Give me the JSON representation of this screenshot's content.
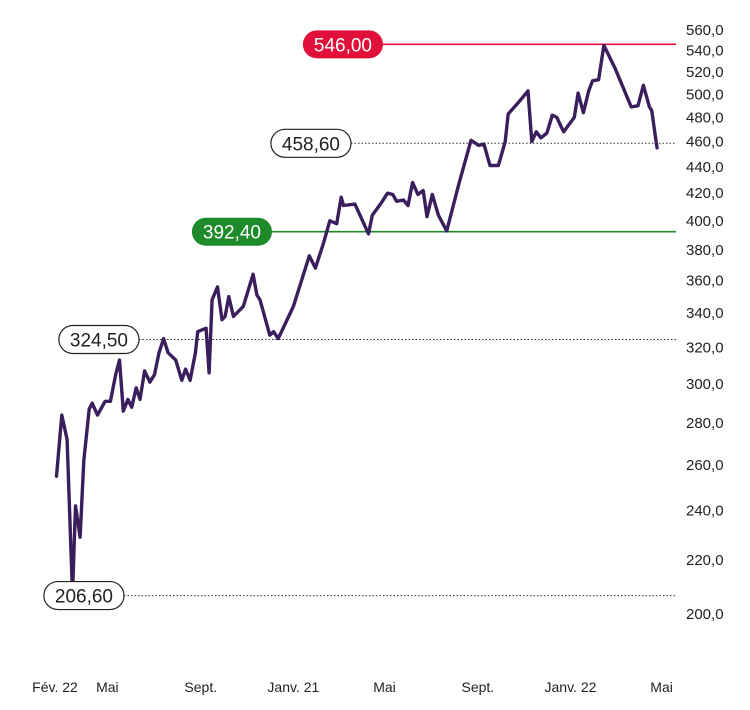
{
  "chart_data": {
    "type": "line",
    "scale": "log",
    "y_ticks": [
      "200,0",
      "220,0",
      "240,0",
      "260,0",
      "280,0",
      "300,0",
      "320,0",
      "340,0",
      "360,0",
      "380,0",
      "400,0",
      "420,0",
      "440,0",
      "460,0",
      "480,0",
      "500,0",
      "520,0",
      "540,0",
      "560,0"
    ],
    "y_tick_values": [
      200,
      220,
      240,
      260,
      280,
      300,
      320,
      340,
      360,
      380,
      400,
      420,
      440,
      460,
      480,
      500,
      520,
      540,
      560
    ],
    "x_ticks": [
      {
        "label": "Fév. 22",
        "date": "2020-02-22"
      },
      {
        "label": "Mai",
        "date": "2020-05-01"
      },
      {
        "label": "Sept.",
        "date": "2020-09-01"
      },
      {
        "label": "Janv. 21",
        "date": "2021-01-01"
      },
      {
        "label": "Mai",
        "date": "2021-05-01"
      },
      {
        "label": "Sept.",
        "date": "2021-09-01"
      },
      {
        "label": "Janv. 22",
        "date": "2022-01-01"
      },
      {
        "label": "Mai",
        "date": "2022-05-01"
      }
    ],
    "ylim": [
      200,
      560
    ],
    "xlim": [
      "2020-02-22",
      "2022-05-20"
    ],
    "levels": [
      {
        "value": 546.0,
        "label": "546,00",
        "style": "red"
      },
      {
        "value": 458.6,
        "label": "458,60",
        "style": "dotted"
      },
      {
        "value": 392.4,
        "label": "392,40",
        "style": "green"
      },
      {
        "value": 324.5,
        "label": "324,50",
        "style": "dotted"
      },
      {
        "value": 206.6,
        "label": "206,60",
        "style": "dotted"
      }
    ],
    "series": [
      {
        "color": "#3b1e5c",
        "points": [
          [
            "2020-02-24",
            255
          ],
          [
            "2020-03-02",
            284
          ],
          [
            "2020-03-09",
            272
          ],
          [
            "2020-03-16",
            207
          ],
          [
            "2020-03-20",
            242
          ],
          [
            "2020-03-26",
            229
          ],
          [
            "2020-03-31",
            262
          ],
          [
            "2020-04-07",
            287
          ],
          [
            "2020-04-11",
            290
          ],
          [
            "2020-04-18",
            284
          ],
          [
            "2020-04-28",
            291
          ],
          [
            "2020-05-05",
            291
          ],
          [
            "2020-05-12",
            305
          ],
          [
            "2020-05-17",
            313
          ],
          [
            "2020-05-22",
            286
          ],
          [
            "2020-05-28",
            292
          ],
          [
            "2020-06-02",
            288
          ],
          [
            "2020-06-08",
            298
          ],
          [
            "2020-06-13",
            292
          ],
          [
            "2020-06-19",
            307
          ],
          [
            "2020-06-26",
            301
          ],
          [
            "2020-07-02",
            305
          ],
          [
            "2020-07-08",
            317
          ],
          [
            "2020-07-14",
            325
          ],
          [
            "2020-07-20",
            317
          ],
          [
            "2020-07-30",
            313
          ],
          [
            "2020-08-07",
            302
          ],
          [
            "2020-08-12",
            308
          ],
          [
            "2020-08-18",
            302
          ],
          [
            "2020-08-25",
            317
          ],
          [
            "2020-08-28",
            329
          ],
          [
            "2020-09-08",
            331
          ],
          [
            "2020-09-12",
            306
          ],
          [
            "2020-09-16",
            348
          ],
          [
            "2020-09-23",
            356
          ],
          [
            "2020-09-29",
            336
          ],
          [
            "2020-10-03",
            338
          ],
          [
            "2020-10-08",
            350
          ],
          [
            "2020-10-14",
            338
          ],
          [
            "2020-10-27",
            344
          ],
          [
            "2020-11-09",
            364
          ],
          [
            "2020-11-14",
            351
          ],
          [
            "2020-11-18",
            348
          ],
          [
            "2020-12-01",
            327
          ],
          [
            "2020-12-06",
            329
          ],
          [
            "2020-12-12",
            325
          ],
          [
            "2021-01-01",
            344
          ],
          [
            "2021-01-22",
            376
          ],
          [
            "2021-01-30",
            368
          ],
          [
            "2021-02-10",
            385
          ],
          [
            "2021-02-18",
            400
          ],
          [
            "2021-02-27",
            398
          ],
          [
            "2021-03-05",
            417
          ],
          [
            "2021-03-08",
            411
          ],
          [
            "2021-03-23",
            412
          ],
          [
            "2021-04-10",
            391
          ],
          [
            "2021-04-15",
            404
          ],
          [
            "2021-04-27",
            413
          ],
          [
            "2021-05-05",
            420
          ],
          [
            "2021-05-12",
            419
          ],
          [
            "2021-05-17",
            414
          ],
          [
            "2021-05-26",
            415
          ],
          [
            "2021-06-01",
            411
          ],
          [
            "2021-06-07",
            428
          ],
          [
            "2021-06-14",
            419
          ],
          [
            "2021-06-21",
            422
          ],
          [
            "2021-06-26",
            403
          ],
          [
            "2021-07-03",
            419
          ],
          [
            "2021-07-11",
            404
          ],
          [
            "2021-07-22",
            393
          ],
          [
            "2021-08-07",
            427
          ],
          [
            "2021-08-23",
            461
          ],
          [
            "2021-09-02",
            457
          ],
          [
            "2021-09-09",
            458
          ],
          [
            "2021-09-17",
            441
          ],
          [
            "2021-09-28",
            441
          ],
          [
            "2021-10-07",
            460
          ],
          [
            "2021-10-11",
            483
          ],
          [
            "2021-10-26",
            494
          ],
          [
            "2021-11-06",
            503
          ],
          [
            "2021-11-11",
            460
          ],
          [
            "2021-11-17",
            468
          ],
          [
            "2021-11-23",
            463
          ],
          [
            "2021-12-01",
            467
          ],
          [
            "2021-12-08",
            482
          ],
          [
            "2021-12-14",
            480
          ],
          [
            "2021-12-23",
            468
          ],
          [
            "2022-01-06",
            480
          ],
          [
            "2022-01-11",
            501
          ],
          [
            "2022-01-18",
            484
          ],
          [
            "2022-01-25",
            503
          ],
          [
            "2022-01-30",
            512
          ],
          [
            "2022-02-07",
            513
          ],
          [
            "2022-02-14",
            545
          ],
          [
            "2022-03-01",
            523
          ],
          [
            "2022-03-22",
            489
          ],
          [
            "2022-03-31",
            490
          ],
          [
            "2022-04-07",
            508
          ],
          [
            "2022-04-15",
            489
          ],
          [
            "2022-04-18",
            486
          ],
          [
            "2022-04-25",
            455
          ]
        ]
      }
    ]
  }
}
